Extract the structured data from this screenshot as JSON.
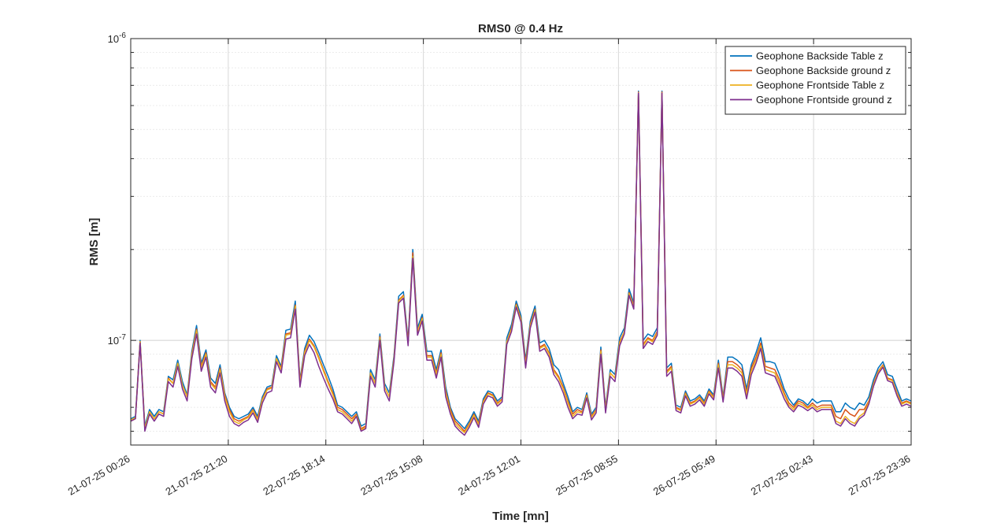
{
  "chart_data": {
    "type": "line",
    "title": "RMS0 @ 0.4 Hz",
    "xlabel": "Time [mn]",
    "ylabel": "RMS [m]",
    "yscale": "log",
    "ylim": [
      4.5e-08,
      1e-06
    ],
    "y_tick_labels": [
      {
        "base": "10",
        "exp": "-6",
        "value": 1e-06
      },
      {
        "base": "10",
        "exp": "-7",
        "value": 1e-07
      }
    ],
    "x_tick_labels": [
      "21-07-25 00:26",
      "21-07-25 21:20",
      "22-07-25 18:14",
      "23-07-25 15:08",
      "24-07-25 12:01",
      "25-07-25 08:55",
      "26-07-25 05:49",
      "27-07-25 02:43",
      "27-07-25 23:36"
    ],
    "grid": true,
    "legend_position": "top-right",
    "series": [
      {
        "name": "Geophone Backside Table z",
        "color": "#0072BD",
        "values": [
          5.5e-08,
          5.6e-08,
          1e-07,
          5.2e-08,
          5.9e-08,
          5.6e-08,
          5.9e-08,
          5.8e-08,
          7.6e-08,
          7.4e-08,
          8.6e-08,
          7.3e-08,
          6.6e-08,
          9.2e-08,
          1.12e-07,
          8.4e-08,
          9.3e-08,
          7.5e-08,
          7.2e-08,
          8.3e-08,
          6.7e-08,
          6e-08,
          5.6e-08,
          5.5e-08,
          5.6e-08,
          5.7e-08,
          6e-08,
          5.6e-08,
          6.5e-08,
          7e-08,
          7.1e-08,
          8.9e-08,
          8.2e-08,
          1.08e-07,
          1.09e-07,
          1.35e-07,
          7.4e-08,
          9.4e-08,
          1.04e-07,
          9.9e-08,
          9.1e-08,
          8.3e-08,
          7.6e-08,
          6.9e-08,
          6.1e-08,
          6e-08,
          5.8e-08,
          5.6e-08,
          5.8e-08,
          5.2e-08,
          5.3e-08,
          8e-08,
          7.4e-08,
          1.05e-07,
          7.2e-08,
          6.7e-08,
          8.9e-08,
          1.4e-07,
          1.45e-07,
          1e-07,
          2e-07,
          1.1e-07,
          1.22e-07,
          9.2e-08,
          9.2e-08,
          8e-08,
          9.3e-08,
          7e-08,
          6e-08,
          5.5e-08,
          5.3e-08,
          5.1e-08,
          5.4e-08,
          5.8e-08,
          5.4e-08,
          6.4e-08,
          6.8e-08,
          6.7e-08,
          6.3e-08,
          6.5e-08,
          1.02e-07,
          1.13e-07,
          1.35e-07,
          1.21e-07,
          8.6e-08,
          1.16e-07,
          1.3e-07,
          9.8e-08,
          1e-07,
          9.4e-08,
          8.3e-08,
          8e-08,
          7.2e-08,
          6.5e-08,
          5.8e-08,
          6e-08,
          5.9e-08,
          6.7e-08,
          5.7e-08,
          6e-08,
          9.5e-08,
          6e-08,
          8e-08,
          7.7e-08,
          1.02e-07,
          1.1e-07,
          1.48e-07,
          1.33e-07,
          6.7e-07,
          1e-07,
          1.05e-07,
          1.03e-07,
          1.1e-07,
          6.7e-07,
          8.1e-08,
          8.4e-08,
          6.1e-08,
          6e-08,
          6.8e-08,
          6.3e-08,
          6.4e-08,
          6.6e-08,
          6.3e-08,
          6.9e-08,
          6.6e-08,
          8.6e-08,
          6.5e-08,
          8.8e-08,
          8.8e-08,
          8.6e-08,
          8.3e-08,
          6.9e-08,
          8.3e-08,
          9.1e-08,
          1.02e-07,
          8.5e-08,
          8.5e-08,
          8.4e-08,
          7.7e-08,
          6.9e-08,
          6.4e-08,
          6.1e-08,
          6.4e-08,
          6.3e-08,
          6.1e-08,
          6.4e-08,
          6.2e-08,
          6.3e-08,
          6.3e-08,
          6.3e-08,
          5.8e-08,
          5.8e-08,
          6.2e-08,
          6e-08,
          5.9e-08,
          6.2e-08,
          6.1e-08,
          6.5e-08,
          7.4e-08,
          8.1e-08,
          8.5e-08,
          7.7e-08,
          7.6e-08,
          6.9e-08,
          6.3e-08,
          6.4e-08,
          6.3e-08
        ]
      },
      {
        "name": "Geophone Backside ground z",
        "color": "#D95319",
        "values": [
          5.4e-08,
          5.5e-08,
          9.9e-08,
          5.1e-08,
          5.8e-08,
          5.5e-08,
          5.8e-08,
          5.7e-08,
          7.5e-08,
          7.2e-08,
          8.4e-08,
          7.1e-08,
          6.5e-08,
          9e-08,
          1.09e-07,
          8.2e-08,
          9.1e-08,
          7.3e-08,
          7e-08,
          8.1e-08,
          6.6e-08,
          5.9e-08,
          5.5e-08,
          5.4e-08,
          5.5e-08,
          5.6e-08,
          5.9e-08,
          5.5e-08,
          6.4e-08,
          6.9e-08,
          7e-08,
          8.7e-08,
          8.1e-08,
          1.05e-07,
          1.06e-07,
          1.31e-07,
          7.3e-08,
          9.2e-08,
          1.01e-07,
          9.6e-08,
          8.8e-08,
          8e-08,
          7.3e-08,
          6.7e-08,
          6e-08,
          5.9e-08,
          5.7e-08,
          5.5e-08,
          5.7e-08,
          5.1e-08,
          5.2e-08,
          7.8e-08,
          7.2e-08,
          1.03e-07,
          7e-08,
          6.5e-08,
          8.7e-08,
          1.36e-07,
          1.41e-07,
          9.8e-08,
          1.95e-07,
          1.07e-07,
          1.19e-07,
          8.9e-08,
          8.9e-08,
          7.8e-08,
          9.1e-08,
          6.8e-08,
          5.9e-08,
          5.4e-08,
          5.2e-08,
          5e-08,
          5.3e-08,
          5.7e-08,
          5.3e-08,
          6.3e-08,
          6.7e-08,
          6.6e-08,
          6.2e-08,
          6.4e-08,
          9.9e-08,
          1.1e-07,
          1.32e-07,
          1.18e-07,
          8.4e-08,
          1.13e-07,
          1.27e-07,
          9.5e-08,
          9.7e-08,
          9.1e-08,
          8e-08,
          7.6e-08,
          7e-08,
          6.3e-08,
          5.7e-08,
          5.9e-08,
          5.8e-08,
          6.6e-08,
          5.6e-08,
          5.9e-08,
          9.3e-08,
          5.9e-08,
          7.8e-08,
          7.5e-08,
          9.9e-08,
          1.07e-07,
          1.44e-07,
          1.3e-07,
          6.65e-07,
          9.7e-08,
          1.02e-07,
          1e-07,
          1.07e-07,
          6.65e-07,
          7.9e-08,
          8.2e-08,
          6e-08,
          5.9e-08,
          6.7e-08,
          6.2e-08,
          6.3e-08,
          6.5e-08,
          6.2e-08,
          6.8e-08,
          6.5e-08,
          8.4e-08,
          6.4e-08,
          8.5e-08,
          8.5e-08,
          8.3e-08,
          8e-08,
          6.7e-08,
          8.1e-08,
          8.8e-08,
          9.8e-08,
          8.2e-08,
          8.1e-08,
          8e-08,
          7.4e-08,
          6.7e-08,
          6.2e-08,
          6e-08,
          6.3e-08,
          6.2e-08,
          6e-08,
          6.2e-08,
          6e-08,
          6.1e-08,
          6.1e-08,
          6.1e-08,
          5.6e-08,
          5.5e-08,
          5.9e-08,
          5.7e-08,
          5.6e-08,
          5.9e-08,
          5.9e-08,
          6.3e-08,
          7.2e-08,
          7.9e-08,
          8.3e-08,
          7.5e-08,
          7.4e-08,
          6.7e-08,
          6.2e-08,
          6.3e-08,
          6.2e-08
        ]
      },
      {
        "name": "Geophone Frontside Table z",
        "color": "#EDB120",
        "values": [
          5.45e-08,
          5.55e-08,
          9.9e-08,
          5.1e-08,
          5.8e-08,
          5.5e-08,
          5.8e-08,
          5.7e-08,
          7.45e-08,
          7.2e-08,
          8.4e-08,
          7.1e-08,
          6.5e-08,
          8.9e-08,
          1.08e-07,
          8.1e-08,
          9e-08,
          7.2e-08,
          6.9e-08,
          8e-08,
          6.5e-08,
          5.8e-08,
          5.4e-08,
          5.3e-08,
          5.45e-08,
          5.55e-08,
          5.85e-08,
          5.45e-08,
          6.35e-08,
          6.85e-08,
          6.95e-08,
          8.7e-08,
          8e-08,
          1.04e-07,
          1.05e-07,
          1.3e-07,
          7.2e-08,
          9.1e-08,
          1e-07,
          9.5e-08,
          8.7e-08,
          7.9e-08,
          7.2e-08,
          6.6e-08,
          5.9e-08,
          5.8e-08,
          5.6e-08,
          5.4e-08,
          5.65e-08,
          5.05e-08,
          5.15e-08,
          7.8e-08,
          7.2e-08,
          1.02e-07,
          7e-08,
          6.5e-08,
          8.7e-08,
          1.35e-07,
          1.4e-07,
          9.8e-08,
          1.9e-07,
          1.07e-07,
          1.18e-07,
          8.8e-08,
          8.8e-08,
          7.7e-08,
          9e-08,
          6.7e-08,
          5.8e-08,
          5.3e-08,
          5.1e-08,
          4.95e-08,
          5.25e-08,
          5.65e-08,
          5.25e-08,
          6.25e-08,
          6.65e-08,
          6.55e-08,
          6.15e-08,
          6.35e-08,
          9.9e-08,
          1.09e-07,
          1.31e-07,
          1.17e-07,
          8.3e-08,
          1.12e-07,
          1.26e-07,
          9.4e-08,
          9.6e-08,
          9e-08,
          7.9e-08,
          7.5e-08,
          6.9e-08,
          6.2e-08,
          5.6e-08,
          5.8e-08,
          5.75e-08,
          6.55e-08,
          5.55e-08,
          5.85e-08,
          9.2e-08,
          5.85e-08,
          7.8e-08,
          7.5e-08,
          9.8e-08,
          1.07e-07,
          1.43e-07,
          1.29e-07,
          6.62e-07,
          9.6e-08,
          1.01e-07,
          9.9e-08,
          1.06e-07,
          6.62e-07,
          7.8e-08,
          8.1e-08,
          5.95e-08,
          5.85e-08,
          6.65e-08,
          6.15e-08,
          6.25e-08,
          6.45e-08,
          6.15e-08,
          6.75e-08,
          6.45e-08,
          8.3e-08,
          6.35e-08,
          8.3e-08,
          8.3e-08,
          8.1e-08,
          7.8e-08,
          6.6e-08,
          7.9e-08,
          8.6e-08,
          9.6e-08,
          8e-08,
          7.9e-08,
          7.8e-08,
          7.2e-08,
          6.6e-08,
          6.1e-08,
          5.9e-08,
          6.2e-08,
          6.1e-08,
          5.95e-08,
          6.1e-08,
          5.9e-08,
          6e-08,
          6e-08,
          6e-08,
          5.4e-08,
          5.3e-08,
          5.6e-08,
          5.4e-08,
          5.3e-08,
          5.6e-08,
          5.75e-08,
          6.25e-08,
          7.15e-08,
          7.85e-08,
          8.25e-08,
          7.45e-08,
          7.35e-08,
          6.65e-08,
          6.15e-08,
          6.25e-08,
          6.15e-08
        ]
      },
      {
        "name": "Geophone Frontside ground z",
        "color": "#7E2F8E",
        "values": [
          5.4e-08,
          5.5e-08,
          9.8e-08,
          5e-08,
          5.7e-08,
          5.4e-08,
          5.7e-08,
          5.6e-08,
          7.3e-08,
          7e-08,
          8.2e-08,
          6.9e-08,
          6.3e-08,
          8.7e-08,
          1.05e-07,
          7.9e-08,
          8.8e-08,
          7e-08,
          6.7e-08,
          7.8e-08,
          6.3e-08,
          5.6e-08,
          5.3e-08,
          5.2e-08,
          5.35e-08,
          5.45e-08,
          5.75e-08,
          5.35e-08,
          6.2e-08,
          6.7e-08,
          6.8e-08,
          8.5e-08,
          7.8e-08,
          1.01e-07,
          1.02e-07,
          1.27e-07,
          7e-08,
          8.9e-08,
          9.7e-08,
          9.1e-08,
          8.2e-08,
          7.5e-08,
          6.9e-08,
          6.4e-08,
          5.8e-08,
          5.7e-08,
          5.5e-08,
          5.3e-08,
          5.6e-08,
          5e-08,
          5.1e-08,
          7.6e-08,
          7e-08,
          1e-07,
          6.8e-08,
          6.3e-08,
          8.5e-08,
          1.33e-07,
          1.38e-07,
          9.6e-08,
          1.87e-07,
          1.04e-07,
          1.16e-07,
          8.6e-08,
          8.6e-08,
          7.5e-08,
          8.8e-08,
          6.5e-08,
          5.7e-08,
          5.2e-08,
          5e-08,
          4.85e-08,
          5.15e-08,
          5.55e-08,
          5.15e-08,
          6.15e-08,
          6.55e-08,
          6.45e-08,
          6.05e-08,
          6.25e-08,
          9.7e-08,
          1.07e-07,
          1.29e-07,
          1.15e-07,
          8.1e-08,
          1.1e-07,
          1.24e-07,
          9.2e-08,
          9.4e-08,
          8.8e-08,
          7.7e-08,
          7.3e-08,
          6.7e-08,
          6e-08,
          5.5e-08,
          5.7e-08,
          5.65e-08,
          6.45e-08,
          5.45e-08,
          5.75e-08,
          9e-08,
          5.75e-08,
          7.6e-08,
          7.3e-08,
          9.6e-08,
          1.05e-07,
          1.41e-07,
          1.27e-07,
          6.6e-07,
          9.4e-08,
          9.9e-08,
          9.7e-08,
          1.04e-07,
          6.6e-07,
          7.6e-08,
          7.9e-08,
          5.85e-08,
          5.75e-08,
          6.55e-08,
          6.05e-08,
          6.15e-08,
          6.35e-08,
          6.05e-08,
          6.65e-08,
          6.35e-08,
          8.1e-08,
          6.25e-08,
          8.1e-08,
          8.1e-08,
          7.9e-08,
          7.6e-08,
          6.4e-08,
          7.7e-08,
          8.4e-08,
          9.4e-08,
          7.8e-08,
          7.7e-08,
          7.6e-08,
          7e-08,
          6.4e-08,
          6e-08,
          5.8e-08,
          6.1e-08,
          6e-08,
          5.85e-08,
          6e-08,
          5.8e-08,
          5.9e-08,
          5.9e-08,
          5.9e-08,
          5.3e-08,
          5.2e-08,
          5.5e-08,
          5.3e-08,
          5.2e-08,
          5.5e-08,
          5.65e-08,
          6.15e-08,
          7.05e-08,
          7.75e-08,
          8.15e-08,
          7.35e-08,
          7.25e-08,
          6.55e-08,
          6.05e-08,
          6.15e-08,
          6.05e-08
        ]
      }
    ]
  }
}
